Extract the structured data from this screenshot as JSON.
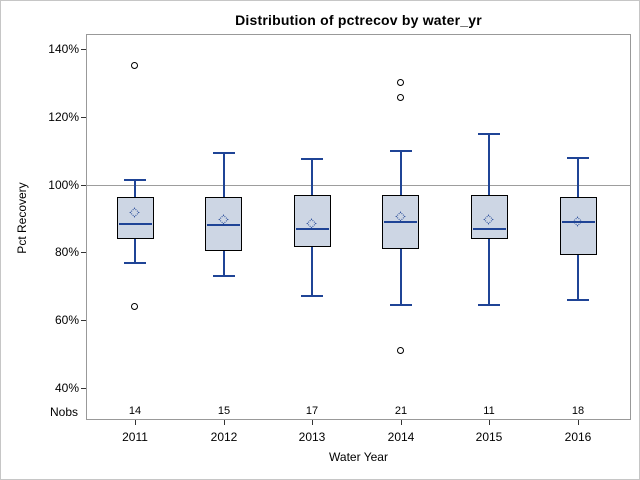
{
  "chart_data": {
    "type": "box",
    "title": "Distribution of pctrecov by water_yr",
    "xlabel": "Water Year",
    "ylabel": "Pct Recovery",
    "nobs_row_label": "Nobs",
    "y_axis": {
      "range": [
        30.5,
        144.5
      ],
      "ticks": [
        {
          "label": "140%",
          "value": 140
        },
        {
          "label": "120%",
          "value": 120
        },
        {
          "label": "100%",
          "value": 100
        },
        {
          "label": "80%",
          "value": 80
        },
        {
          "label": "60%",
          "value": 60
        },
        {
          "label": "40%",
          "value": 40
        }
      ]
    },
    "reference_line_value": 100,
    "grid": "off",
    "legend": "none",
    "categories": [
      "2011",
      "2012",
      "2013",
      "2014",
      "2015",
      "2016"
    ],
    "nobs_values": [
      "14",
      "15",
      "17",
      "21",
      "11",
      "18"
    ],
    "series": [
      {
        "year": "2011",
        "nobs": 14,
        "whisker_low": 77,
        "q1": 84,
        "median": 88.5,
        "q3": 96.5,
        "whisker_high": 101.5,
        "mean": 91.5,
        "outliers": [
          135,
          64
        ]
      },
      {
        "year": "2012",
        "nobs": 15,
        "whisker_low": 73,
        "q1": 80.5,
        "median": 88,
        "q3": 96.5,
        "whisker_high": 109.5,
        "mean": 89.5,
        "outliers": []
      },
      {
        "year": "2013",
        "nobs": 17,
        "whisker_low": 67,
        "q1": 81.5,
        "median": 87,
        "q3": 97,
        "whisker_high": 107.5,
        "mean": 88.5,
        "outliers": []
      },
      {
        "year": "2014",
        "nobs": 21,
        "whisker_low": 64.5,
        "q1": 81,
        "median": 89,
        "q3": 97,
        "whisker_high": 110,
        "mean": 90.5,
        "outliers": [
          130,
          125.5,
          51
        ]
      },
      {
        "year": "2015",
        "nobs": 11,
        "whisker_low": 64.5,
        "q1": 84,
        "median": 87,
        "q3": 97,
        "whisker_high": 115,
        "mean": 89.5,
        "outliers": []
      },
      {
        "year": "2016",
        "nobs": 18,
        "whisker_low": 66,
        "q1": 79.5,
        "median": 89,
        "q3": 96.5,
        "whisker_high": 108,
        "mean": 89,
        "outliers": []
      }
    ],
    "colors": {
      "box_fill": "#cdd6e4",
      "box_border": "#000000",
      "line_blue": "#1f4496",
      "outlier": "#000000",
      "frame_gray": "#999999",
      "reference_line": "#9d9d9d",
      "tick_mark": "#333333",
      "text": "#000000",
      "figure_border": "#c6c6c6",
      "background": "#ffffff"
    }
  }
}
